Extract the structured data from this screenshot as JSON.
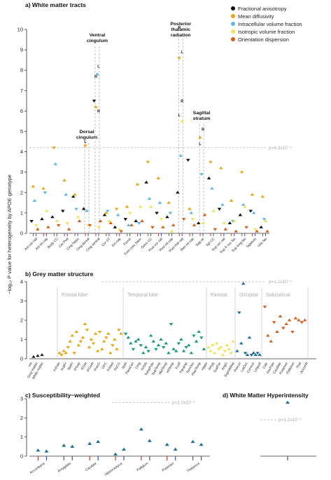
{
  "y_label": "−log₁₀ P value for heterogeneity by APOE genotype",
  "legend": [
    {
      "label": "Fractional anisotropy",
      "color": "#111111"
    },
    {
      "label": "Mean diffusivity",
      "color": "#E6A817"
    },
    {
      "label": "Intracellular volume fraction",
      "color": "#5DB8E8"
    },
    {
      "label": "Isotropic volume fraction",
      "color": "#F2E25A"
    },
    {
      "label": "Orientation dispersion",
      "color": "#D2601C"
    }
  ],
  "chart_data": [
    {
      "type": "scatter",
      "title": "a) White matter tracts",
      "ylim": [
        0,
        10
      ],
      "yticks": [
        0,
        1,
        2,
        3,
        4,
        5,
        6,
        7,
        8,
        9,
        10
      ],
      "threshold": {
        "value": 4.2,
        "label": "p=6.3x10⁻⁵"
      },
      "categories": [
        "Ant cor rad",
        "Ant int cap",
        "Body CC",
        "Cer Ped",
        "Cing hippo",
        "Cing dorsal",
        "Cing ventral",
        "Cor ST",
        "Ext cap",
        "Fornix",
        "Forn cres Stem",
        "Genu CC",
        "Post cor rad",
        "Post int cap",
        "Post thal rad",
        "Retr int cap",
        "Sag str",
        "Spl CC",
        "Sup cor rad",
        "Sup fr occ fas",
        "Sup long fas",
        "Tapetum",
        "Unc fas"
      ],
      "series": [
        {
          "name": "Fractional anisotropy",
          "color": "#111111",
          "values": [
            0.6,
            0.7,
            0.8,
            1.1,
            1.8,
            1.2,
            6.5,
            0.9,
            0.3,
            0.7,
            0.6,
            2.5,
            1.0,
            0.8,
            2.0,
            3.6,
            0.5,
            2.7,
            1.2,
            0.5,
            0.9,
            1.1,
            0.3
          ]
        },
        {
          "name": "Mean diffusivity",
          "color": "#E6A817",
          "values": [
            2.3,
            2.2,
            4.2,
            2.6,
            1.9,
            4.3,
            6.2,
            1.0,
            1.2,
            1.3,
            2.4,
            3.5,
            2.7,
            1.5,
            8.6,
            1.2,
            4.7,
            3.5,
            3.2,
            1.6,
            3.0,
            1.9,
            1.8
          ]
        },
        {
          "name": "Intracellular volume fraction",
          "color": "#5DB8E8",
          "values": [
            1.6,
            2.0,
            3.4,
            1.9,
            1.2,
            1.1,
            7.8,
            1.1,
            0.9,
            0.4,
            0.5,
            1.7,
            1.5,
            1.0,
            3.8,
            1.0,
            2.9,
            2.2,
            1.4,
            0.6,
            1.4,
            1.0,
            0.7
          ]
        },
        {
          "name": "Isotropic volume fraction",
          "color": "#F2E25A",
          "values": [
            0.4,
            1.1,
            0.6,
            0.5,
            0.8,
            0.4,
            0.3,
            0.6,
            0.2,
            1.0,
            1.3,
            1.3,
            0.7,
            0.1,
            5.5,
            0.7,
            0.5,
            1.1,
            0.5,
            0.6,
            1.3,
            0.2,
            0.6
          ]
        },
        {
          "name": "Orientation dispersion",
          "color": "#D2601C",
          "values": [
            0.2,
            0.3,
            0.4,
            0.2,
            0.6,
            0.4,
            0.6,
            0.5,
            0.1,
            0.4,
            0.6,
            0.3,
            0.3,
            0.4,
            0.7,
            0.4,
            0.9,
            0.2,
            0.2,
            0.1,
            0.3,
            0.1,
            0.1
          ]
        }
      ],
      "annotations": [
        {
          "text": "Dorsal cingulum",
          "category": "Cing dorsal"
        },
        {
          "text": "Ventral cingulum",
          "category": "Cing ventral"
        },
        {
          "text": "Posterior thalamic radiation",
          "category": "Post thal rad"
        },
        {
          "text": "Sagittal stratum",
          "category": "Sag str"
        }
      ],
      "side_markers": [
        {
          "text": "L",
          "category": "Cing dorsal",
          "y": 4.5
        },
        {
          "text": "L",
          "category": "Cing ventral",
          "y": 8.2
        },
        {
          "text": "R",
          "category": "Cing ventral",
          "y": 7.7
        },
        {
          "text": "R",
          "category": "Cing ventral",
          "y": 6.0
        },
        {
          "text": "R",
          "category": "Post thal rad",
          "y": 10.1
        },
        {
          "text": "L",
          "category": "Post thal rad",
          "y": 8.9
        },
        {
          "text": "L",
          "category": "Post thal rad",
          "y": 5.8
        },
        {
          "text": "R",
          "category": "Post thal rad",
          "y": 6.5
        },
        {
          "text": "L",
          "category": "Sag str",
          "y": 4.4
        },
        {
          "text": "R",
          "category": "Sag str",
          "y": 5.1
        }
      ]
    },
    {
      "type": "scatter",
      "title": "b) Grey matter structure",
      "ylim": [
        0,
        4
      ],
      "yticks": [
        0,
        1,
        2,
        3,
        4
      ],
      "threshold": {
        "value": 4.0,
        "label": "p=1.1x10⁻⁴"
      },
      "regions": [
        "Frontal lobe",
        "Temporal lobe",
        "Parietal",
        "Occipital",
        "Subcortical"
      ],
      "region_colors": [
        "#E6A817",
        "#1B9A78",
        "#F2E25A",
        "#1F6E99",
        "#D2601C"
      ],
      "region_values": [
        [
          0.3,
          0.2,
          0.4,
          0.3,
          0.6,
          0.9,
          1.2,
          0.3,
          1.4,
          0.7,
          0.9,
          1.1,
          1.8,
          1.5,
          0.6,
          1.0,
          0.8,
          1.3,
          0.4,
          1.4,
          0.5,
          0.9,
          1.1,
          1.3,
          0.3,
          0.7,
          1.0,
          0.5,
          1.5,
          1.3
        ],
        [
          1.3,
          1.1,
          0.8,
          0.5,
          0.9,
          1.0,
          0.7,
          0.3,
          0.6,
          0.4,
          1.2,
          0.9,
          0.5,
          0.7,
          1.0,
          0.6,
          0.8,
          0.3,
          1.8,
          0.5,
          0.4,
          0.8,
          1.0,
          0.4,
          0.6,
          0.7,
          0.3,
          1.2,
          0.9,
          1.4,
          1.1,
          0.5
        ],
        [
          0.6,
          0.4,
          0.7,
          0.3,
          0.8,
          0.5,
          0.6,
          0.2,
          0.4,
          0.7,
          0.5,
          0.3,
          0.9
        ],
        [
          0.4,
          2.4,
          0.8,
          3.9,
          0.3,
          0.2,
          1.1,
          0.2,
          0.3,
          0.2,
          0.3,
          0.2
        ],
        [
          2.7,
          1.2,
          0.9,
          1.9,
          1.4,
          2.2,
          1.6,
          1.8,
          2.0,
          1.4,
          2.1,
          2.0,
          1.9,
          2.0
        ]
      ],
      "tick_labels": [
        "Ins",
        "Gray matter",
        "White matter",
        "FrPole",
        "SupFr",
        "MidFr",
        "IFGop",
        "IFGtri",
        "IFGorb",
        "PrecG",
        "OFC",
        "FrMed",
        "PoCG",
        "SMA",
        "ParaCen",
        "Cing",
        "FrOrb",
        "TempPole",
        "SupTemp",
        "MidTemp",
        "InfTemp",
        "Fusif",
        "ParaHip",
        "TemOcc",
        "PlanTemp",
        "Hippo",
        "Amyg",
        "SupPar",
        "AngG",
        "SupraMarg",
        "Precun",
        "LatOcc",
        "Cuneus",
        "Lingual",
        "Calc",
        "OccPole",
        "Caudate",
        "Putamen",
        "Pallidum",
        "Thal",
        "Accumb"
      ]
    },
    {
      "type": "scatter",
      "title": "c) Susceptibility−weighted",
      "ylim": [
        0,
        3
      ],
      "yticks": [
        0,
        1,
        2,
        3
      ],
      "threshold": {
        "value": 2.8,
        "label": "p=1.0x10⁻³"
      },
      "categories": [
        "Accumbens",
        "Amygdala",
        "Caudate",
        "Hippocampus",
        "Pallidum",
        "Putamen",
        "Thalamus"
      ],
      "pairs": [
        [
          0.3,
          0.25
        ],
        [
          0.55,
          0.5
        ],
        [
          0.65,
          0.75
        ],
        [
          0.1,
          0.35
        ],
        [
          1.4,
          0.8
        ],
        [
          0.6,
          0.35
        ],
        [
          0.75,
          0.6
        ]
      ],
      "color": "#1F6E99"
    },
    {
      "type": "scatter",
      "title": "d) White Matter Hyperintensity",
      "ylim": [
        0,
        3
      ],
      "threshold": {
        "value": 1.9,
        "label": "p=1.2x10⁻²"
      },
      "values": [
        2.8
      ],
      "color": "#1F6E99"
    }
  ]
}
